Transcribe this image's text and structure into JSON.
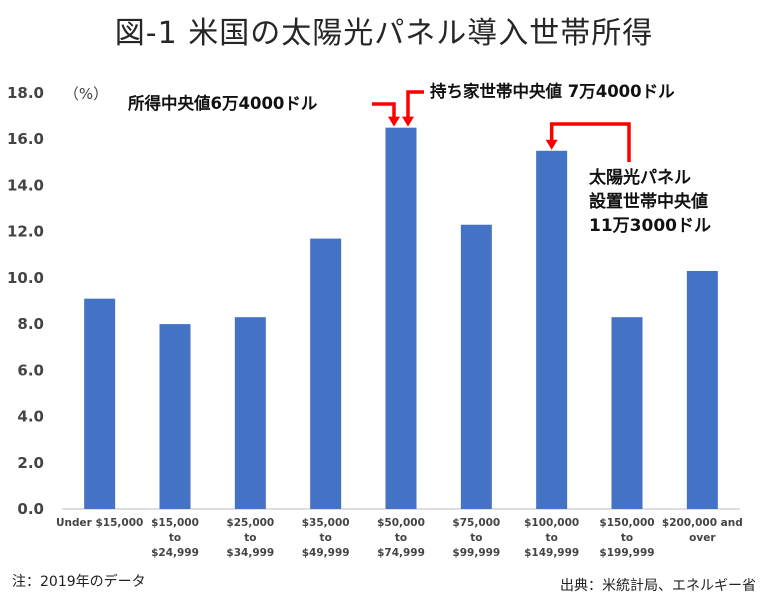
{
  "title": "図-1 米国の太陽光パネル導入世帯所得",
  "note": "注：2019年のデータ",
  "source": "出典：米統計局、エネルギー省",
  "colors": {
    "bar": "#4472C4",
    "arrow": "#FF0000"
  },
  "chart_data": {
    "type": "bar",
    "title": "図-1 米国の太陽光パネル導入世帯所得",
    "ylabel": "（%）",
    "xlabel": "",
    "ylim": [
      0,
      18
    ],
    "yticks": [
      "0.0",
      "2.0",
      "4.0",
      "6.0",
      "8.0",
      "10.0",
      "12.0",
      "14.0",
      "16.0",
      "18.0"
    ],
    "grid": false,
    "categories": [
      [
        "Under $15,000"
      ],
      [
        "$15,000",
        "to",
        "$24,999"
      ],
      [
        "$25,000",
        "to",
        "$34,999"
      ],
      [
        "$35,000",
        "to",
        "$49,999"
      ],
      [
        "$50,000",
        "to",
        "$74,999"
      ],
      [
        "$75,000",
        "to",
        "$99,999"
      ],
      [
        "$100,000",
        "to",
        "$149,999"
      ],
      [
        "$150,000",
        "to",
        "$199,999"
      ],
      [
        "$200,000 and",
        "over"
      ]
    ],
    "values": [
      9.1,
      8.0,
      8.3,
      11.7,
      16.5,
      12.3,
      15.5,
      8.3,
      10.3
    ],
    "annotations": [
      {
        "text": [
          "所得中央値6万4000ドル"
        ],
        "target_bar": 4
      },
      {
        "text": [
          "持ち家世帯中央値 7万4000ドル"
        ],
        "target_bar": 4
      },
      {
        "text": [
          "太陽光パネル",
          "設置世帯中央値",
          "11万3000ドル"
        ],
        "target_bar": 6
      }
    ]
  }
}
